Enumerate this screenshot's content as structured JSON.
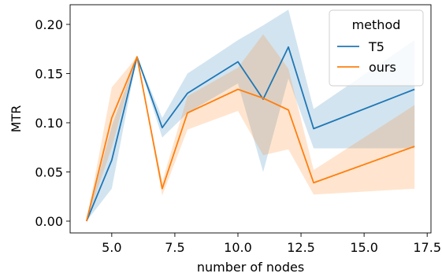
{
  "chart_data": {
    "type": "line",
    "title": "",
    "xlabel": "number of nodes",
    "ylabel": "MTR",
    "xlim": [
      3.35,
      17.65
    ],
    "ylim": [
      -0.012,
      0.22
    ],
    "xticks": [
      5.0,
      7.5,
      10.0,
      12.5,
      15.0,
      17.5
    ],
    "xtick_labels": [
      "5.0",
      "7.5",
      "10.0",
      "12.5",
      "15.0",
      "17.5"
    ],
    "yticks": [
      0.0,
      0.05,
      0.1,
      0.15,
      0.2
    ],
    "ytick_labels": [
      "0.00",
      "0.05",
      "0.10",
      "0.15",
      "0.20"
    ],
    "grid": false,
    "legend": {
      "title": "method",
      "placement": "top-right"
    },
    "series": [
      {
        "name": "T5",
        "color": "#1f77b4",
        "x": [
          4,
          5,
          6,
          7,
          8,
          10,
          11,
          12,
          13,
          17
        ],
        "y": [
          0.0,
          0.062,
          0.167,
          0.095,
          0.13,
          0.162,
          0.124,
          0.177,
          0.094,
          0.134
        ],
        "ci_low": [
          0.0,
          0.033,
          0.167,
          0.085,
          0.11,
          0.14,
          0.05,
          0.145,
          0.074,
          0.074
        ],
        "ci_high": [
          0.0,
          0.097,
          0.167,
          0.105,
          0.15,
          0.184,
          0.199,
          0.215,
          0.114,
          0.184
        ]
      },
      {
        "name": "ours",
        "color": "#ff7f0e",
        "x": [
          4,
          5,
          6,
          7,
          8,
          10,
          11,
          12,
          13,
          17
        ],
        "y": [
          0.0,
          0.105,
          0.167,
          0.033,
          0.11,
          0.134,
          0.125,
          0.113,
          0.039,
          0.076
        ],
        "ci_low": [
          0.0,
          0.075,
          0.167,
          0.026,
          0.093,
          0.112,
          0.067,
          0.073,
          0.027,
          0.033
        ],
        "ci_high": [
          0.0,
          0.136,
          0.167,
          0.04,
          0.127,
          0.156,
          0.19,
          0.155,
          0.052,
          0.118
        ]
      }
    ]
  }
}
